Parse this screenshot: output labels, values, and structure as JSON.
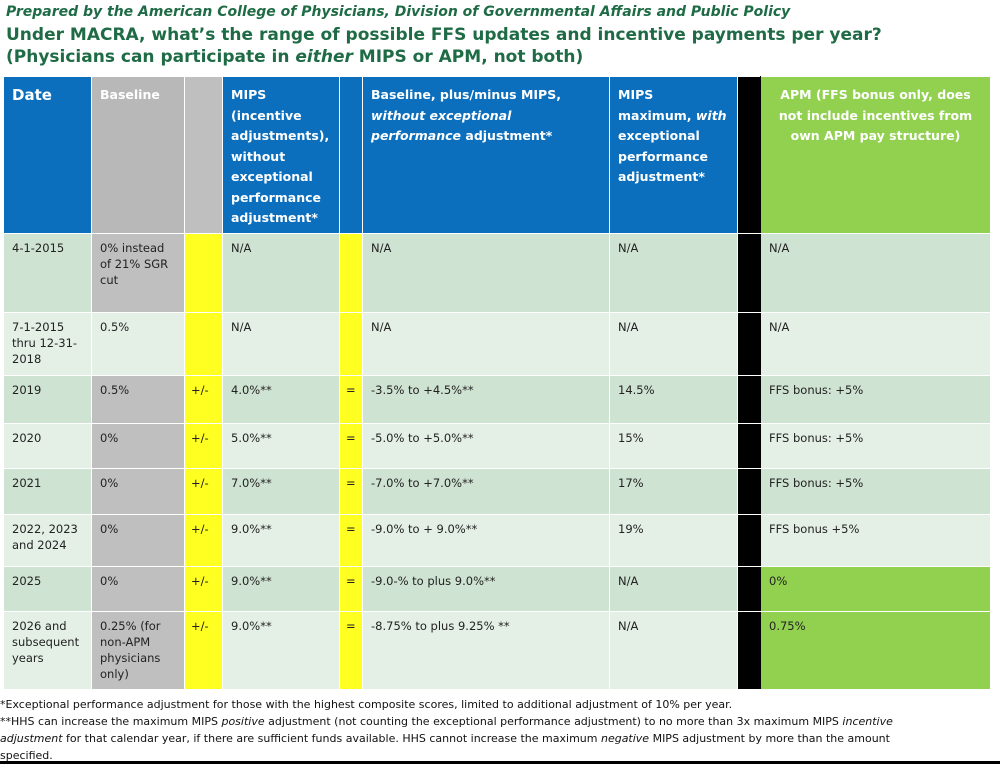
{
  "prepared_by": "Prepared by the American College of Physicians, Division of Governmental Affairs and Public Policy",
  "title": {
    "part1": "Under MACRA, what’s the range of possible FFS updates and incentive payments per year? (Physicians can participate in ",
    "either": "either",
    "part2": " MIPS or APM, not both)"
  },
  "headers": {
    "date": "Date",
    "baseline": "Baseline",
    "mips": "MIPS (incentive adjustments), without exceptional performance adjustment*",
    "range_part1": "Baseline, plus/minus MIPS, ",
    "range_italic": "without exceptional performance",
    "range_part2": " adjustment*",
    "max_part1": "MIPS maximum, ",
    "max_italic": "with",
    "max_part2": " exceptional performance adjustment*",
    "apm": "APM (FFS bonus only, does not include incentives from own APM pay structure)"
  },
  "rows": [
    {
      "date": "4-1-2015",
      "baseline": "0% instead of 21% SGR cut",
      "op1": "",
      "mips": "N/A",
      "op2": "",
      "range": "N/A",
      "max": "N/A",
      "apm": "N/A"
    },
    {
      "date": "7-1-2015 thru 12-31-2018",
      "baseline": "0.5%",
      "op1": "",
      "mips": "N/A",
      "op2": "",
      "range": "N/A",
      "max": "N/A",
      "apm": "N/A"
    },
    {
      "date": "2019",
      "baseline": "0.5%",
      "op1": "+/-",
      "mips": "4.0%**",
      "op2": "=",
      "range": "-3.5% to +4.5%**",
      "max": "14.5%",
      "apm": "FFS bonus: +5%"
    },
    {
      "date": "2020",
      "baseline": "0%",
      "op1": "+/-",
      "mips": "5.0%**",
      "op2": "=",
      "range": "-5.0% to +5.0%**",
      "max": "15%",
      "apm": "FFS bonus: +5%"
    },
    {
      "date": "2021",
      "baseline": "0%",
      "op1": "+/-",
      "mips": "7.0%**",
      "op2": "=",
      "range": "-7.0% to +7.0%**",
      "max": "17%",
      "apm": "FFS bonus: +5%"
    },
    {
      "date": "2022, 2023 and 2024",
      "baseline": "0%",
      "op1": "+/-",
      "mips": "9.0%**",
      "op2": "=",
      "range": "-9.0% to + 9.0%**",
      "max": "19%",
      "apm": "FFS bonus +5%"
    },
    {
      "date": "2025",
      "baseline": "0%",
      "op1": "+/-",
      "mips": "9.0%**",
      "op2": "=",
      "range": "-9.0-% to plus 9.0%**",
      "max": "N/A",
      "apm": "0%"
    },
    {
      "date": "2026 and subsequent years",
      "baseline": "0.25% (for non-APM physicians only)",
      "op1": "+/-",
      "mips": "9.0%**",
      "op2": "=",
      "range": "-8.75% to plus 9.25% **",
      "max": "N/A",
      "apm": "0.75%"
    }
  ],
  "footnotes": {
    "note1": "*Exceptional performance adjustment for those with the highest composite scores, limited to additional adjustment of 10% per year.",
    "note2_a": "**HHS can increase the maximum MIPS ",
    "note2_positive": "positive",
    "note2_b": " adjustment (not counting the exceptional performance adjustment) to no more than 3x maximum MIPS ",
    "note2_incentive": "incentive",
    "note2_c": "adjustment",
    "note2_d": " for that calendar year, if there are sufficient funds available.  HHS cannot increase the maximum ",
    "note2_negative": "negative",
    "note2_e": " MIPS adjustment by more than the amount",
    "note2_f": "specified."
  }
}
